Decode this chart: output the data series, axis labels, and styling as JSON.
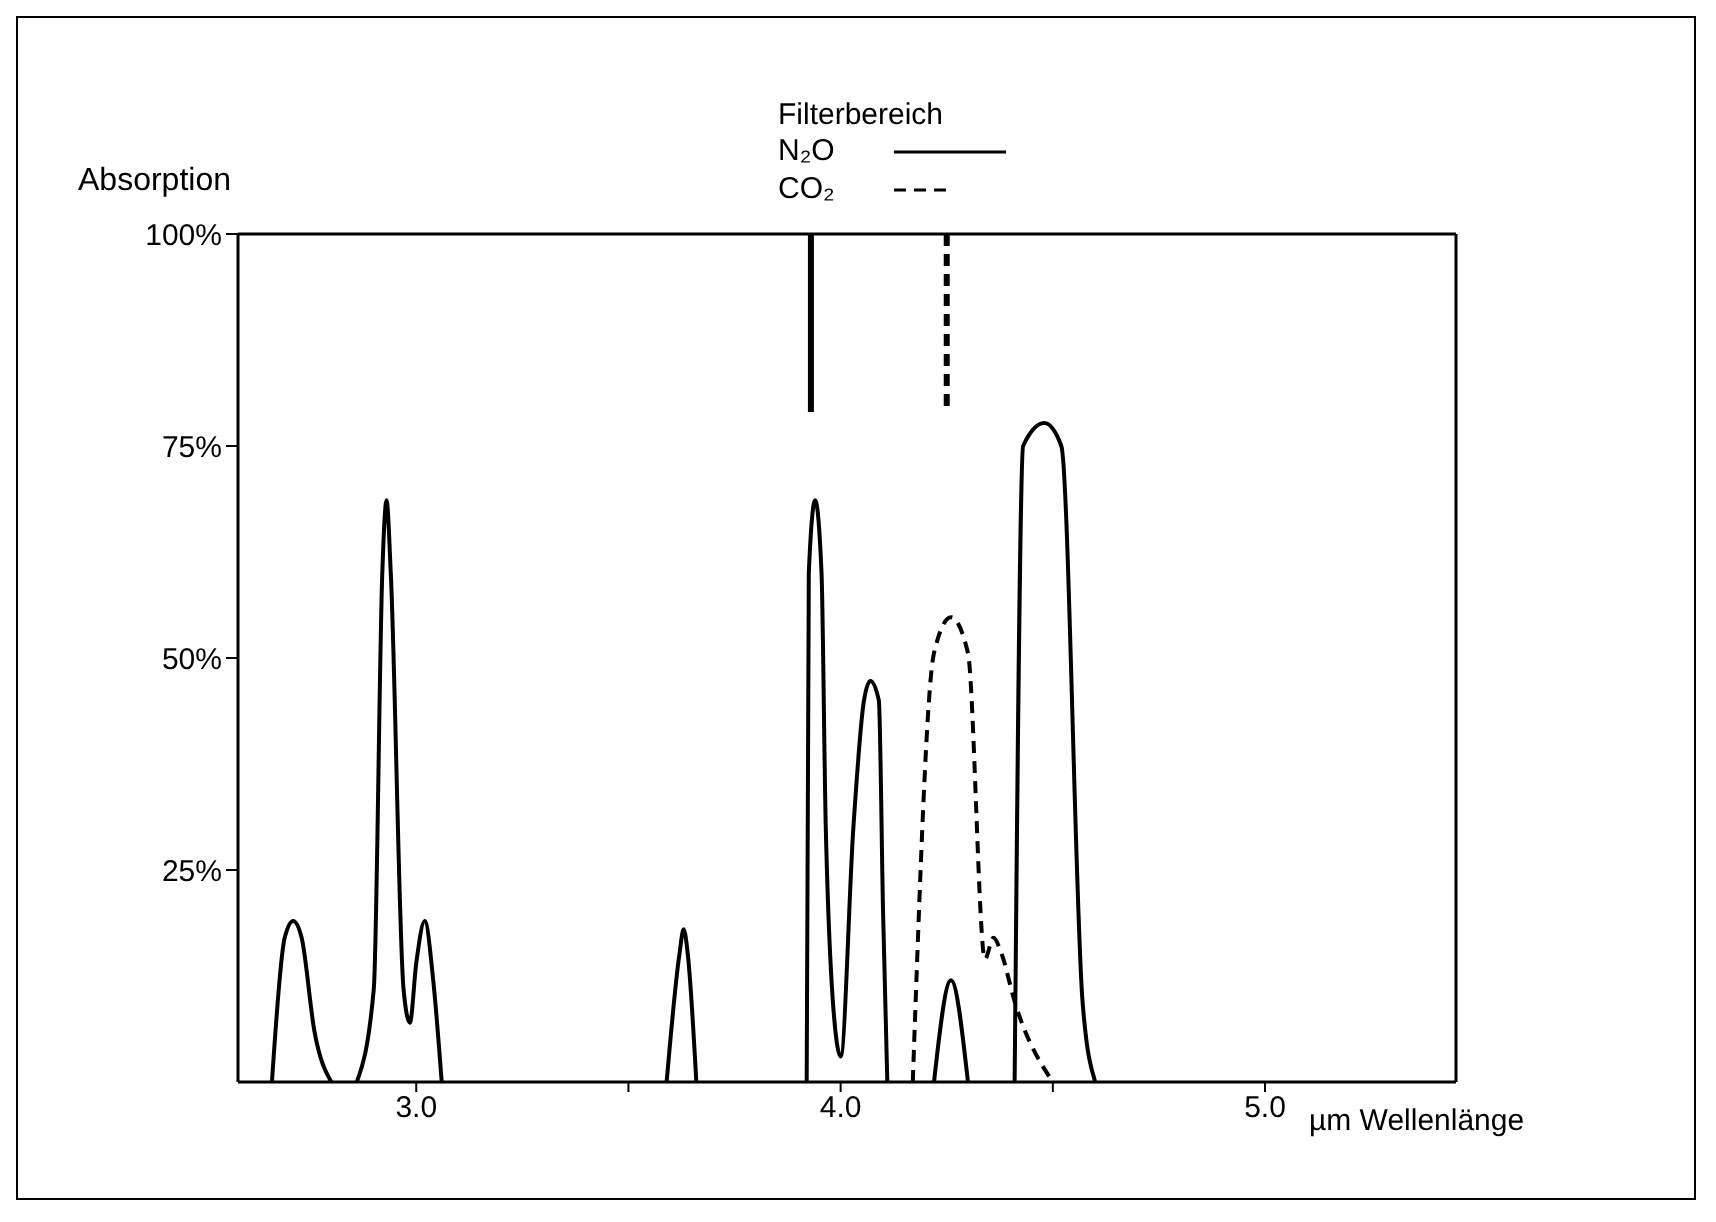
{
  "chart_data": {
    "type": "line",
    "ylabel": "Absorption",
    "xlabel": "µm Wellenlänge",
    "legend_title": "Filterbereich",
    "legend": "top",
    "marker": "none",
    "xlim": [
      2.58,
      5.45
    ],
    "xticks": [
      {
        "value": 3.0,
        "label": "3.0"
      },
      {
        "value": 3.5,
        "label": null
      },
      {
        "value": 4.0,
        "label": "4.0"
      },
      {
        "value": 4.5,
        "label": null
      },
      {
        "value": 5.0,
        "label": "5.0"
      }
    ],
    "ylim": [
      0,
      100
    ],
    "yticks": [
      {
        "value": 25,
        "label": "25%"
      },
      {
        "value": 50,
        "label": "50%"
      },
      {
        "value": 75,
        "label": "75%"
      },
      {
        "value": 100,
        "label": "100%"
      }
    ],
    "series": [
      {
        "name": "N₂O",
        "color": "#000000",
        "line_style": "solid",
        "x": [
          3.93,
          3.93
        ],
        "values": [
          100,
          79
        ]
      },
      {
        "name": "CO₂",
        "color": "#000000",
        "line_style": "dashed",
        "x": [
          4.25,
          4.25
        ],
        "values": [
          100,
          79
        ]
      },
      {
        "color": "#000000",
        "line_style": "solid",
        "x": [
          2.66,
          2.69,
          2.71,
          2.73,
          2.76,
          2.8,
          null,
          2.86,
          2.9,
          2.92,
          2.93,
          2.94,
          2.97,
          2.985,
          3.0,
          3.02,
          3.04,
          3.06,
          null,
          3.59,
          3.62,
          3.63,
          3.64,
          3.66,
          null,
          3.92,
          3.925,
          3.94,
          3.955,
          3.965,
          3.99,
          4.0,
          4.03,
          4.055,
          4.07,
          4.09,
          4.1,
          4.11,
          null,
          4.22,
          4.26,
          4.3,
          null,
          4.41,
          4.43,
          4.48,
          4.52,
          4.57,
          4.6
        ],
        "values": [
          0,
          17,
          19,
          17,
          6,
          0,
          null,
          0,
          11,
          60,
          68.6,
          60,
          11,
          7,
          14,
          19,
          12,
          0,
          null,
          0,
          15,
          18,
          15,
          0,
          null,
          0,
          60,
          68.6,
          60,
          30,
          5,
          3,
          30,
          45,
          47.3,
          45,
          20,
          0,
          null,
          0,
          12,
          0,
          null,
          0,
          75,
          77.7,
          75,
          9.5,
          0
        ]
      },
      {
        "color": "#000000",
        "line_style": "dashed",
        "x": [
          4.17,
          4.22,
          4.26,
          4.3,
          4.34,
          4.36,
          4.38,
          4.41,
          4.5
        ],
        "values": [
          0,
          50.6,
          54.8,
          50.6,
          14.5,
          17,
          15,
          9.5,
          0
        ]
      }
    ]
  }
}
